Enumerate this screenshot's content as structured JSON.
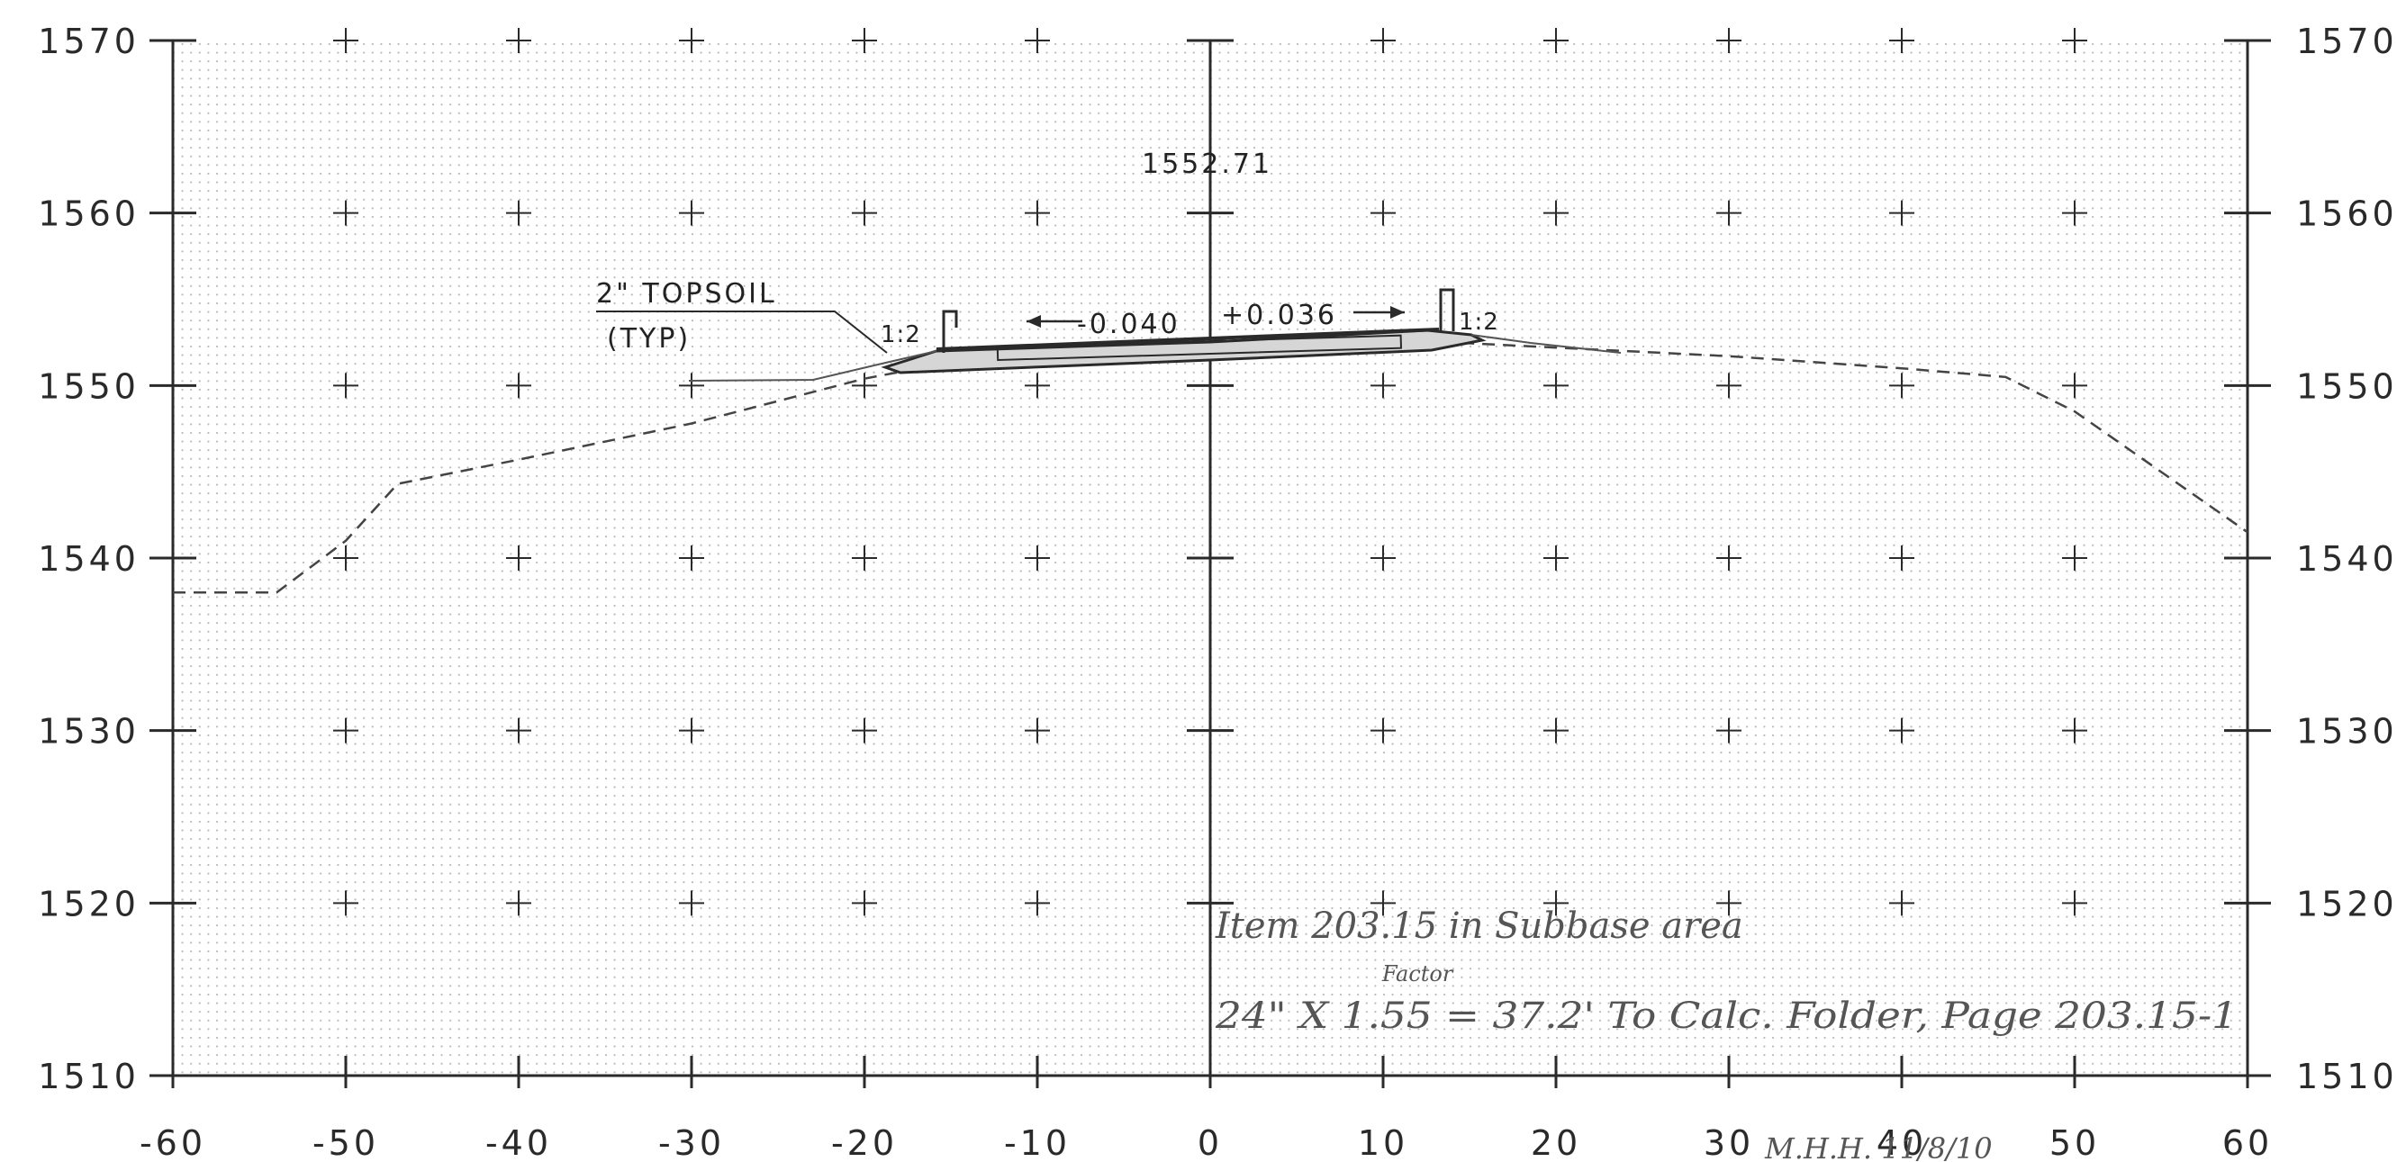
{
  "chart_data": {
    "type": "cross-section",
    "x_ticks": [
      "-60",
      "-50",
      "-40",
      "-30",
      "-20",
      "-10",
      "0",
      "10",
      "20",
      "30",
      "40",
      "50",
      "60"
    ],
    "y_ticks_left": [
      "1570",
      "1560",
      "1550",
      "1540",
      "1530",
      "1520",
      "1510"
    ],
    "y_ticks_right": [
      "1570",
      "1560",
      "1550",
      "1540",
      "1530",
      "1520",
      "1510"
    ],
    "xlim": [
      -60,
      60
    ],
    "ylim": [
      1510,
      1570
    ],
    "grid": "dotted",
    "existing_ground": {
      "x": [
        -60,
        -54,
        -50,
        -47,
        -40,
        -30,
        -20,
        -10,
        0,
        10,
        20,
        30,
        40,
        46,
        50,
        60
      ],
      "y": [
        1538,
        1538,
        1541,
        1544.3,
        1545.7,
        1547.8,
        1550.4,
        1552.3,
        1552.6,
        1552.7,
        1552.2,
        1551.7,
        1551.0,
        1550.5,
        1548.5,
        1541.5
      ]
    },
    "proposed_section": {
      "x": [
        -19.5,
        -18,
        -15.5,
        0,
        13,
        15.5,
        16
      ],
      "y": [
        1550.6,
        1551.1,
        1552.3,
        1552.9,
        1553.2,
        1553.1,
        1552.8
      ]
    },
    "profile_grade_elevation": "1552.71",
    "slope_left": "-0.040",
    "slope_right": "+0.036",
    "side_slope_left": "1:2",
    "side_slope_right": "1:2"
  },
  "annotations": {
    "elevation": "1552.71",
    "topsoil_line1": "2\" TOPSOIL",
    "topsoil_line2": "(TYP)",
    "slope_left": "-0.040",
    "slope_right": "+0.036",
    "side_slope_left": "1:2",
    "side_slope_right": "1:2",
    "handwritten_line1": "Item 203.15 in Subbase area",
    "handwritten_factor": "Factor",
    "handwritten_line2": "24\" X 1.55 = 37.2' To Calc. Folder, Page 203.15-1",
    "handwritten_initials": "M.H.H. 11/8/10"
  },
  "colors": {
    "line": "#2a2a2a",
    "grid_dot": "#b8b8b8",
    "existing_ground": "#444444",
    "pencil": "#666666"
  }
}
